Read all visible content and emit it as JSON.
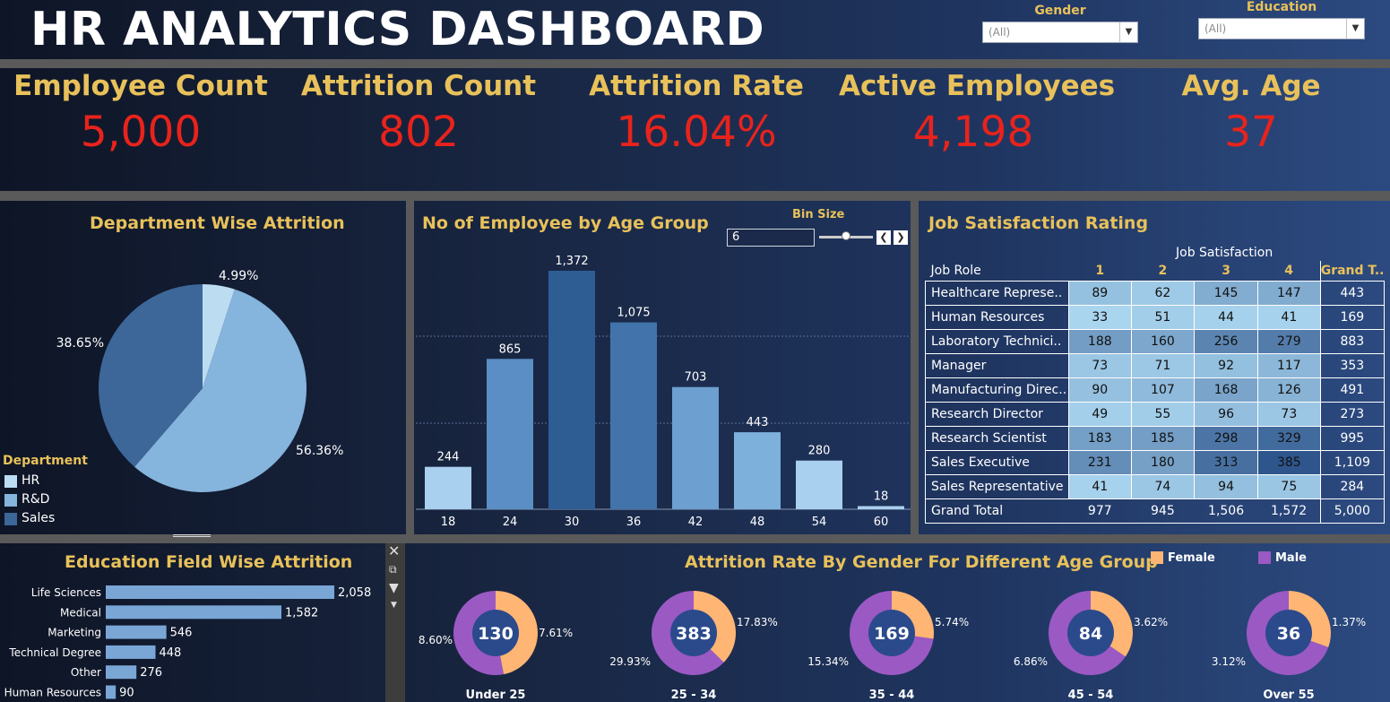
{
  "header": {
    "title": "HR  ANALYTICS DASHBOARD",
    "filters": [
      {
        "label": "Gender",
        "value": "(All)"
      },
      {
        "label": "Education",
        "value": "(All)"
      }
    ]
  },
  "kpis": [
    {
      "label": "Employee Count",
      "value": "5,000"
    },
    {
      "label": "Attrition Count",
      "value": "802"
    },
    {
      "label": "Attrition Rate",
      "value": "16.04%"
    },
    {
      "label": "Active Employees",
      "value": "4,198"
    },
    {
      "label": "Avg. Age",
      "value": "37"
    }
  ],
  "colors": {
    "title_gold": "#e8c15a",
    "kpi_red": "#e8231c",
    "hr": "#bcdcf2",
    "rnd": "#85b4dc",
    "sales": "#3d6699",
    "female": "#ffb574",
    "male": "#9b59c4",
    "donut_center": "#2b4a8c"
  },
  "chart_data": [
    {
      "type": "pie",
      "title": "Department Wise Attrition",
      "legend_title": "Department",
      "legend_position": "bottom-left",
      "slices": [
        {
          "name": "HR",
          "value": 4.99,
          "label": "4.99%",
          "color": "#bcdcf2"
        },
        {
          "name": "R&D",
          "value": 56.36,
          "label": "56.36%",
          "color": "#85b4dc"
        },
        {
          "name": "Sales",
          "value": 38.65,
          "label": "38.65%",
          "color": "#3d6699"
        }
      ]
    },
    {
      "type": "bar",
      "title": "No of Employee by Age Group",
      "bin_size_label": "Bin Size",
      "bin_size": "6",
      "categories": [
        "18",
        "24",
        "30",
        "36",
        "42",
        "48",
        "54",
        "60"
      ],
      "values": [
        244,
        865,
        1372,
        1075,
        703,
        443,
        280,
        18
      ],
      "value_labels": [
        "244",
        "865",
        "1,372",
        "1,075",
        "703",
        "443",
        "280",
        "18"
      ],
      "ylim": [
        0,
        1500
      ],
      "grid": true
    },
    {
      "type": "table",
      "title": "Job Satisfaction Rating",
      "column_group_header": "Job Satisfaction",
      "row_header": "Job Role",
      "columns": [
        "1",
        "2",
        "3",
        "4",
        "Grand T.."
      ],
      "rows": [
        {
          "role": "Healthcare Represe..",
          "values": [
            89,
            62,
            145,
            147
          ],
          "total": "443"
        },
        {
          "role": "Human Resources",
          "values": [
            33,
            51,
            44,
            41
          ],
          "total": "169"
        },
        {
          "role": "Laboratory Technici..",
          "values": [
            188,
            160,
            256,
            279
          ],
          "total": "883"
        },
        {
          "role": "Manager",
          "values": [
            73,
            71,
            92,
            117
          ],
          "total": "353"
        },
        {
          "role": "Manufacturing Direc..",
          "values": [
            90,
            107,
            168,
            126
          ],
          "total": "491"
        },
        {
          "role": "Research Director",
          "values": [
            49,
            55,
            96,
            73
          ],
          "total": "273"
        },
        {
          "role": "Research Scientist",
          "values": [
            183,
            185,
            298,
            329
          ],
          "total": "995"
        },
        {
          "role": "Sales Executive",
          "values": [
            231,
            180,
            313,
            385
          ],
          "total": "1,109"
        },
        {
          "role": "Sales Representative",
          "values": [
            41,
            74,
            94,
            75
          ],
          "total": "284"
        }
      ],
      "grand_total": {
        "label": "Grand Total",
        "values": [
          "977",
          "945",
          "1,506",
          "1,572"
        ],
        "total": "5,000"
      }
    },
    {
      "type": "bar",
      "orientation": "horizontal",
      "title": "Education Field Wise Attrition",
      "categories": [
        "Life Sciences",
        "Medical",
        "Marketing",
        "Technical Degree",
        "Other",
        "Human Resources"
      ],
      "values": [
        2058,
        1582,
        546,
        448,
        276,
        90
      ],
      "value_labels": [
        "2,058",
        "1,582",
        "546",
        "448",
        "276",
        "90"
      ]
    },
    {
      "type": "pie",
      "subtype": "donut",
      "title": "Attrition Rate By Gender For Different Age Group",
      "legend": [
        {
          "name": "Female",
          "color": "#ffb574"
        },
        {
          "name": "Male",
          "color": "#9b59c4"
        }
      ],
      "legend_position": "top-right",
      "groups": [
        {
          "label": "Under 25",
          "center": "130",
          "female": 7.61,
          "male": 8.6,
          "female_label": "7.61%",
          "male_label": "8.60%"
        },
        {
          "label": "25 - 34",
          "center": "383",
          "female": 17.83,
          "male": 29.93,
          "female_label": "17.83%",
          "male_label": "29.93%"
        },
        {
          "label": "35 - 44",
          "center": "169",
          "female": 5.74,
          "male": 15.34,
          "female_label": "5.74%",
          "male_label": "15.34%"
        },
        {
          "label": "45 - 54",
          "center": "84",
          "female": 3.62,
          "male": 6.86,
          "female_label": "3.62%",
          "male_label": "6.86%"
        },
        {
          "label": "Over 55",
          "center": "36",
          "female": 1.37,
          "male": 3.12,
          "female_label": "1.37%",
          "male_label": "3.12%"
        }
      ]
    }
  ]
}
